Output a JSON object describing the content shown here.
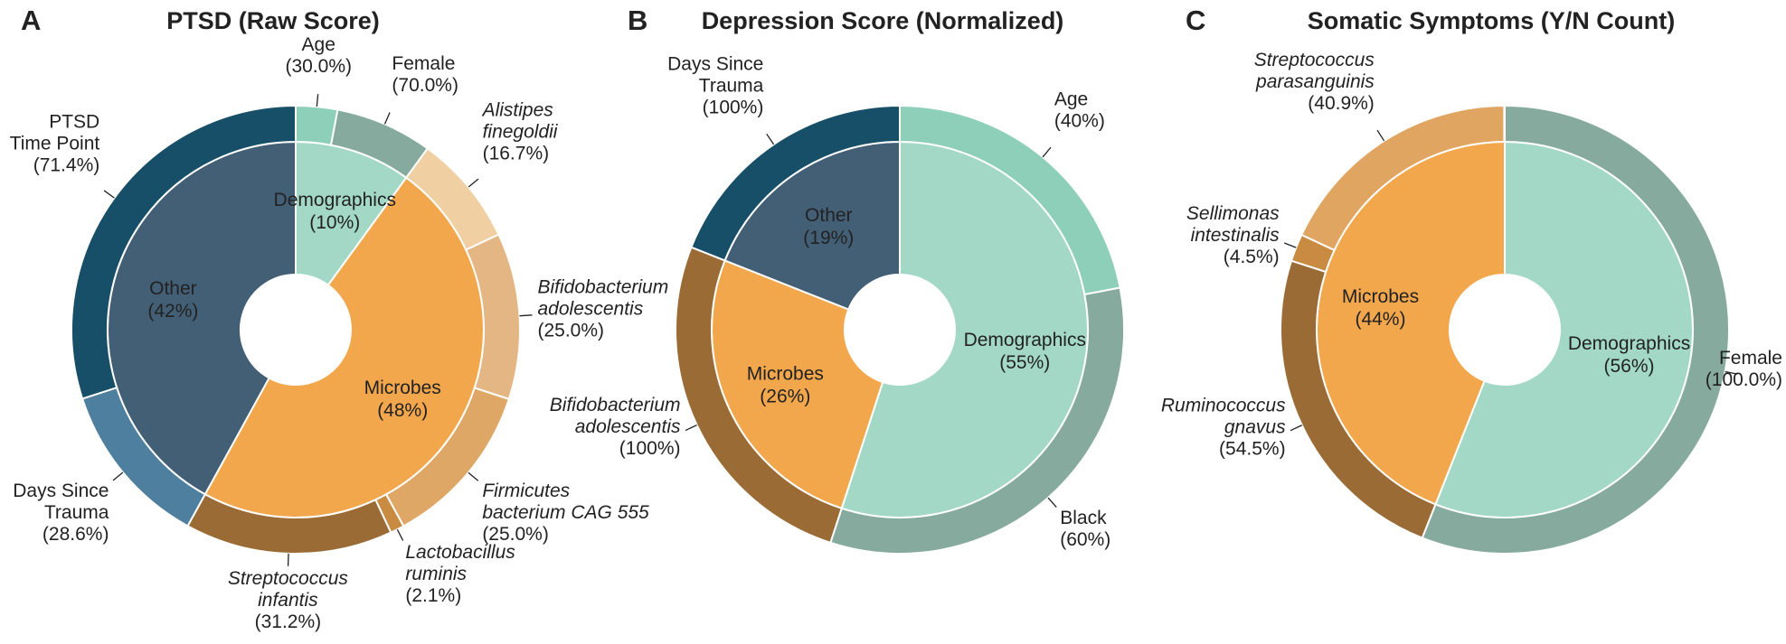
{
  "chart_data": [
    {
      "type": "pie",
      "panel": "A",
      "title": "PTSD (Raw Score)",
      "groups": [
        {
          "name": "Demographics",
          "value": 10,
          "value_label": "(10%)",
          "color": "#a3d8c6",
          "children": [
            {
              "name": "Age",
              "value": 30.0,
              "value_label": "(30.0%)",
              "color": "#8ecfba"
            },
            {
              "name": "Female",
              "value": 70.0,
              "value_label": "(70.0%)",
              "color": "#86ab9e"
            }
          ]
        },
        {
          "name": "Microbes",
          "value": 48,
          "value_label": "(48%)",
          "color": "#f2a74c",
          "child_style": "italic",
          "children": [
            {
              "name": "Alistipes\nfinegoldii",
              "value": 16.7,
              "value_label": "(16.7%)",
              "color": "#f0cfa3"
            },
            {
              "name": "Bifidobacterium\nadolescentis",
              "value": 25.0,
              "value_label": "(25.0%)",
              "color": "#e4b683"
            },
            {
              "name": "Firmicutes\nbacterium CAG 555",
              "value": 25.0,
              "value_label": "(25.0%)",
              "color": "#dea766"
            },
            {
              "name": "Lactobacillus\nruminis",
              "value": 2.1,
              "value_label": "(2.1%)",
              "color": "#c98b42"
            },
            {
              "name": "Streptococcus\ninfantis",
              "value": 31.2,
              "value_label": "(31.2%)",
              "color": "#9b6b36"
            }
          ]
        },
        {
          "name": "Other",
          "value": 42,
          "value_label": "(42%)",
          "color": "#435f76",
          "children": [
            {
              "name": "Days Since\nTrauma",
              "value": 28.6,
              "value_label": "(28.6%)",
              "color": "#4f7f9f"
            },
            {
              "name": "PTSD\nTime Point",
              "value": 71.4,
              "value_label": "(71.4%)",
              "color": "#174f68"
            }
          ]
        }
      ]
    },
    {
      "type": "pie",
      "panel": "B",
      "title": "Depression Score (Normalized)",
      "groups": [
        {
          "name": "Demographics",
          "value": 55,
          "value_label": "(55%)",
          "color": "#a3d8c6",
          "children": [
            {
              "name": "Age",
              "value": 40,
              "value_label": "(40%)",
              "color": "#8ecfba"
            },
            {
              "name": "Black",
              "value": 60,
              "value_label": "(60%)",
              "color": "#86ab9e"
            }
          ]
        },
        {
          "name": "Microbes",
          "value": 26,
          "value_label": "(26%)",
          "color": "#f2a74c",
          "child_style": "italic",
          "children": [
            {
              "name": "Bifidobacterium\nadolescentis",
              "value": 100,
              "value_label": "(100%)",
              "color": "#9b6b36"
            }
          ]
        },
        {
          "name": "Other",
          "value": 19,
          "value_label": "(19%)",
          "color": "#435f76",
          "children": [
            {
              "name": "Days Since\nTrauma",
              "value": 100,
              "value_label": "(100%)",
              "color": "#174f68"
            }
          ]
        }
      ]
    },
    {
      "type": "pie",
      "panel": "C",
      "title": "Somatic Symptoms (Y/N Count)",
      "groups": [
        {
          "name": "Demographics",
          "value": 56,
          "value_label": "(56%)",
          "color": "#a3d8c6",
          "children": [
            {
              "name": "Female",
              "value": 100.0,
              "value_label": "(100.0%)",
              "color": "#86ab9e"
            }
          ]
        },
        {
          "name": "Microbes",
          "value": 44,
          "value_label": "(44%)",
          "color": "#f2a74c",
          "child_style": "italic",
          "children": [
            {
              "name": "Ruminococcus\ngnavus",
              "value": 54.5,
              "value_label": "(54.5%)",
              "color": "#9b6b36"
            },
            {
              "name": "Sellimonas\nintestinalis",
              "value": 4.5,
              "value_label": "(4.5%)",
              "color": "#c98b42"
            },
            {
              "name": "Streptococcus\nparasanguinis",
              "value": 40.9,
              "value_label": "(40.9%)",
              "color": "#e0a561"
            }
          ]
        }
      ]
    }
  ]
}
